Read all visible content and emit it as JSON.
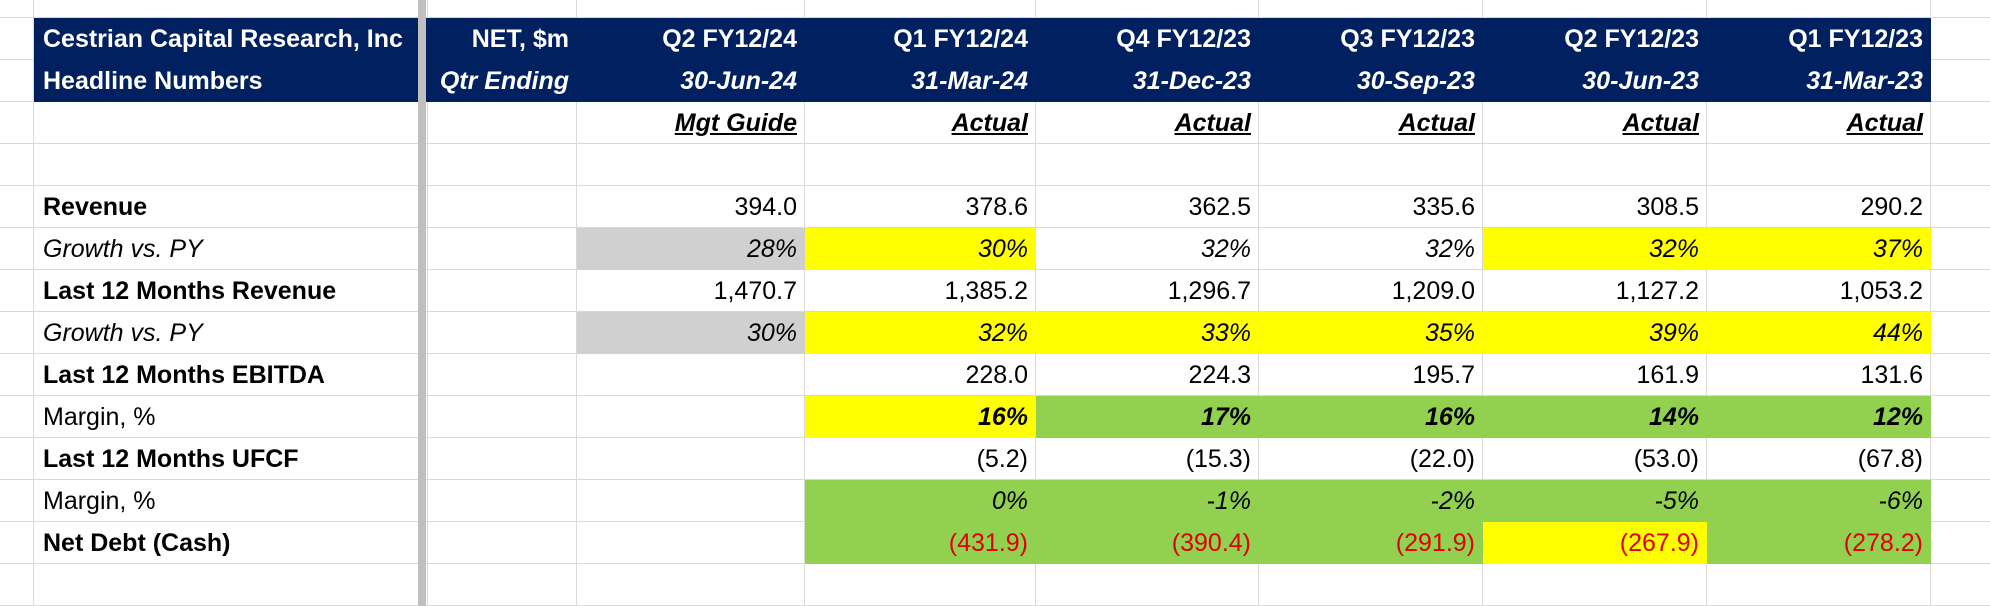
{
  "colors": {
    "header_bg": "#002060",
    "header_text": "#ffffff",
    "highlight_yellow": "#ffff00",
    "highlight_green": "#92d050",
    "highlight_gray": "#d0d0d0",
    "negative_text": "#e00000",
    "gridline": "#d9d9d9"
  },
  "header": {
    "company": "Cestrian Capital Research, Inc",
    "subtitle": "Headline Numbers",
    "units": "NET, $m",
    "qtr_ending_label": "Qtr Ending",
    "periods": [
      {
        "label": "Q2 FY12/24",
        "date": "30-Jun-24",
        "status": "Mgt Guide"
      },
      {
        "label": "Q1 FY12/24",
        "date": "31-Mar-24",
        "status": "Actual"
      },
      {
        "label": "Q4 FY12/23",
        "date": "31-Dec-23",
        "status": "Actual"
      },
      {
        "label": "Q3 FY12/23",
        "date": "30-Sep-23",
        "status": "Actual"
      },
      {
        "label": "Q2 FY12/23",
        "date": "30-Jun-23",
        "status": "Actual"
      },
      {
        "label": "Q1 FY12/23",
        "date": "31-Mar-23",
        "status": "Actual"
      }
    ]
  },
  "rows": [
    {
      "label": "Revenue",
      "bold": true,
      "italic": false,
      "cells": [
        {
          "v": "394.0"
        },
        {
          "v": "378.6"
        },
        {
          "v": "362.5"
        },
        {
          "v": "335.6"
        },
        {
          "v": "308.5"
        },
        {
          "v": "290.2"
        }
      ]
    },
    {
      "label": "Growth vs. PY",
      "bold": false,
      "italic": true,
      "cells": [
        {
          "v": "28%",
          "bg": "gray"
        },
        {
          "v": "30%",
          "bg": "yellow"
        },
        {
          "v": "32%"
        },
        {
          "v": "32%"
        },
        {
          "v": "32%",
          "bg": "yellow"
        },
        {
          "v": "37%",
          "bg": "yellow"
        }
      ]
    },
    {
      "label": "Last 12 Months Revenue",
      "bold": true,
      "italic": false,
      "cells": [
        {
          "v": "1,470.7"
        },
        {
          "v": "1,385.2"
        },
        {
          "v": "1,296.7"
        },
        {
          "v": "1,209.0"
        },
        {
          "v": "1,127.2"
        },
        {
          "v": "1,053.2"
        }
      ]
    },
    {
      "label": "Growth vs. PY",
      "bold": false,
      "italic": true,
      "cells": [
        {
          "v": "30%",
          "bg": "gray"
        },
        {
          "v": "32%",
          "bg": "yellow"
        },
        {
          "v": "33%",
          "bg": "yellow"
        },
        {
          "v": "35%",
          "bg": "yellow"
        },
        {
          "v": "39%",
          "bg": "yellow"
        },
        {
          "v": "44%",
          "bg": "yellow"
        }
      ]
    },
    {
      "label": "Last 12 Months EBITDA",
      "bold": true,
      "italic": false,
      "cells": [
        {
          "v": ""
        },
        {
          "v": "228.0"
        },
        {
          "v": "224.3"
        },
        {
          "v": "195.7"
        },
        {
          "v": "161.9"
        },
        {
          "v": "131.6"
        }
      ]
    },
    {
      "label": "Margin, %",
      "bold": false,
      "italic": false,
      "cells": [
        {
          "v": ""
        },
        {
          "v": "16%",
          "bg": "yellow",
          "bold": true,
          "italic": true
        },
        {
          "v": "17%",
          "bg": "green",
          "bold": true,
          "italic": true
        },
        {
          "v": "16%",
          "bg": "green",
          "bold": true,
          "italic": true
        },
        {
          "v": "14%",
          "bg": "green",
          "bold": true,
          "italic": true
        },
        {
          "v": "12%",
          "bg": "green",
          "bold": true,
          "italic": true
        }
      ]
    },
    {
      "label": "Last 12 Months UFCF",
      "bold": true,
      "italic": false,
      "cells": [
        {
          "v": ""
        },
        {
          "v": "(5.2)"
        },
        {
          "v": "(15.3)"
        },
        {
          "v": "(22.0)"
        },
        {
          "v": "(53.0)"
        },
        {
          "v": "(67.8)"
        }
      ]
    },
    {
      "label": "Margin, %",
      "bold": false,
      "italic": false,
      "cells": [
        {
          "v": ""
        },
        {
          "v": "0%",
          "bg": "green",
          "italic": true
        },
        {
          "v": "-1%",
          "bg": "green",
          "italic": true
        },
        {
          "v": "-2%",
          "bg": "green",
          "italic": true
        },
        {
          "v": "-5%",
          "bg": "green",
          "italic": true
        },
        {
          "v": "-6%",
          "bg": "green",
          "italic": true
        }
      ]
    },
    {
      "label": "Net Debt (Cash)",
      "bold": true,
      "italic": false,
      "cells": [
        {
          "v": ""
        },
        {
          "v": "(431.9)",
          "bg": "green",
          "neg": true
        },
        {
          "v": "(390.4)",
          "bg": "green",
          "neg": true
        },
        {
          "v": "(291.9)",
          "bg": "green",
          "neg": true
        },
        {
          "v": "(267.9)",
          "bg": "yellow",
          "neg": true
        },
        {
          "v": "(278.2)",
          "bg": "green",
          "neg": true
        }
      ]
    }
  ]
}
